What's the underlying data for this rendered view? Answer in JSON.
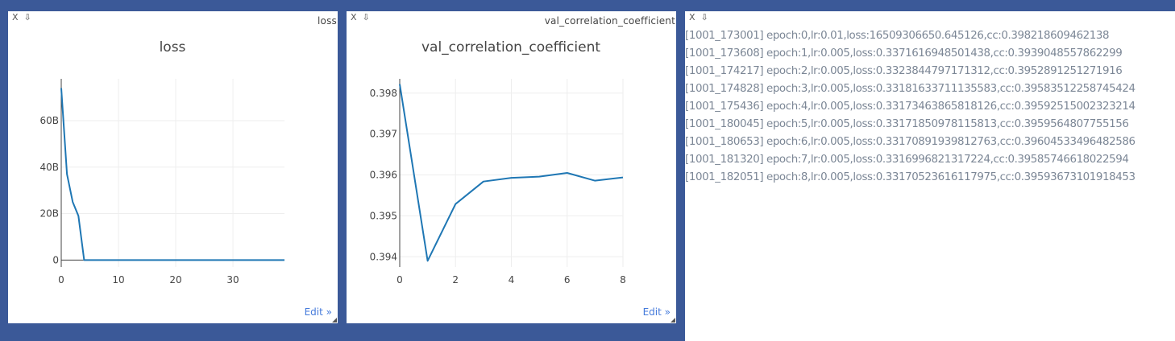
{
  "icons": {
    "close": "X",
    "download": "⇩"
  },
  "windows": [
    {
      "label": "loss",
      "edit_label": "Edit »",
      "chart_data": {
        "type": "line",
        "title": "loss",
        "xlabel": "",
        "ylabel": "",
        "x": [
          0,
          1,
          2,
          3,
          4,
          5,
          6,
          7,
          8,
          9,
          10,
          11,
          12,
          13,
          14,
          15,
          16,
          17,
          18,
          19,
          20,
          21,
          22,
          23,
          24,
          25,
          26,
          27,
          28,
          29,
          30,
          31,
          32,
          33,
          34,
          35,
          36,
          37,
          38,
          39
        ],
        "series": [
          {
            "values": [
              74000000000,
              37000000000,
              25000000000,
              19000000000,
              0.3318,
              0.3317,
              0.3317,
              0.3317,
              0.3317,
              0.3317,
              0.3317,
              0.3317,
              0.3317,
              0.3317,
              0.3317,
              0.3317,
              0.3317,
              0.3317,
              0.3317,
              0.3317,
              0.3317,
              0.3317,
              0.3317,
              0.3317,
              0.3317,
              0.3317,
              0.3317,
              0.3317,
              0.3317,
              0.3317,
              0.3317,
              0.3317,
              0.3317,
              0.3317,
              0.3317,
              0.3317,
              0.3317,
              0.3317,
              0.3317,
              0.3317
            ]
          }
        ],
        "xlim": [
          0,
          39
        ],
        "ylim": [
          -3000000000,
          78000000000
        ],
        "xticks": [
          0,
          10,
          20,
          30
        ],
        "yticks": [
          0,
          20000000000,
          40000000000,
          60000000000
        ],
        "ytick_labels": [
          "0",
          "20B",
          "40B",
          "60B"
        ],
        "grid": true,
        "line_color": "#1f77b4"
      }
    },
    {
      "label": "val_correlation_coefficient",
      "edit_label": "Edit »",
      "chart_data": {
        "type": "line",
        "title": "val_correlation_coefficient",
        "xlabel": "",
        "ylabel": "",
        "x": [
          0,
          1,
          2,
          3,
          4,
          5,
          6,
          7,
          8
        ],
        "series": [
          {
            "values": [
              0.39822,
              0.3939,
              0.39529,
              0.39584,
              0.39593,
              0.39596,
              0.39605,
              0.39586,
              0.39594
            ]
          }
        ],
        "xlim": [
          0,
          8
        ],
        "ylim": [
          0.39375,
          0.39835
        ],
        "xticks": [
          0,
          2,
          4,
          6,
          8
        ],
        "yticks": [
          0.394,
          0.395,
          0.396,
          0.397,
          0.398
        ],
        "ytick_labels": [
          "0.394",
          "0.395",
          "0.396",
          "0.397",
          "0.398"
        ],
        "grid": true,
        "line_color": "#1f77b4"
      }
    }
  ],
  "log": {
    "lines": [
      "[1001_173001] epoch:0,lr:0.01,loss:16509306650.645126,cc:0.398218609462138",
      "[1001_173608] epoch:1,lr:0.005,loss:0.3371616948501438,cc:0.3939048557862299",
      "[1001_174217] epoch:2,lr:0.005,loss:0.3323844797171312,cc:0.3952891251271916",
      "[1001_174828] epoch:3,lr:0.005,loss:0.33181633711135583,cc:0.39583512258745424",
      "[1001_175436] epoch:4,lr:0.005,loss:0.33173463865818126,cc:0.39592515002323214",
      "[1001_180045] epoch:5,lr:0.005,loss:0.33171850978115813,cc:0.3959564807755156",
      "[1001_180653] epoch:6,lr:0.005,loss:0.33170891939812763,cc:0.39604533496482586",
      "[1001_181320] epoch:7,lr:0.005,loss:0.3316996821317224,cc:0.39585746618022594",
      "[1001_182051] epoch:8,lr:0.005,loss:0.33170523616117975,cc:0.39593673101918453"
    ]
  }
}
